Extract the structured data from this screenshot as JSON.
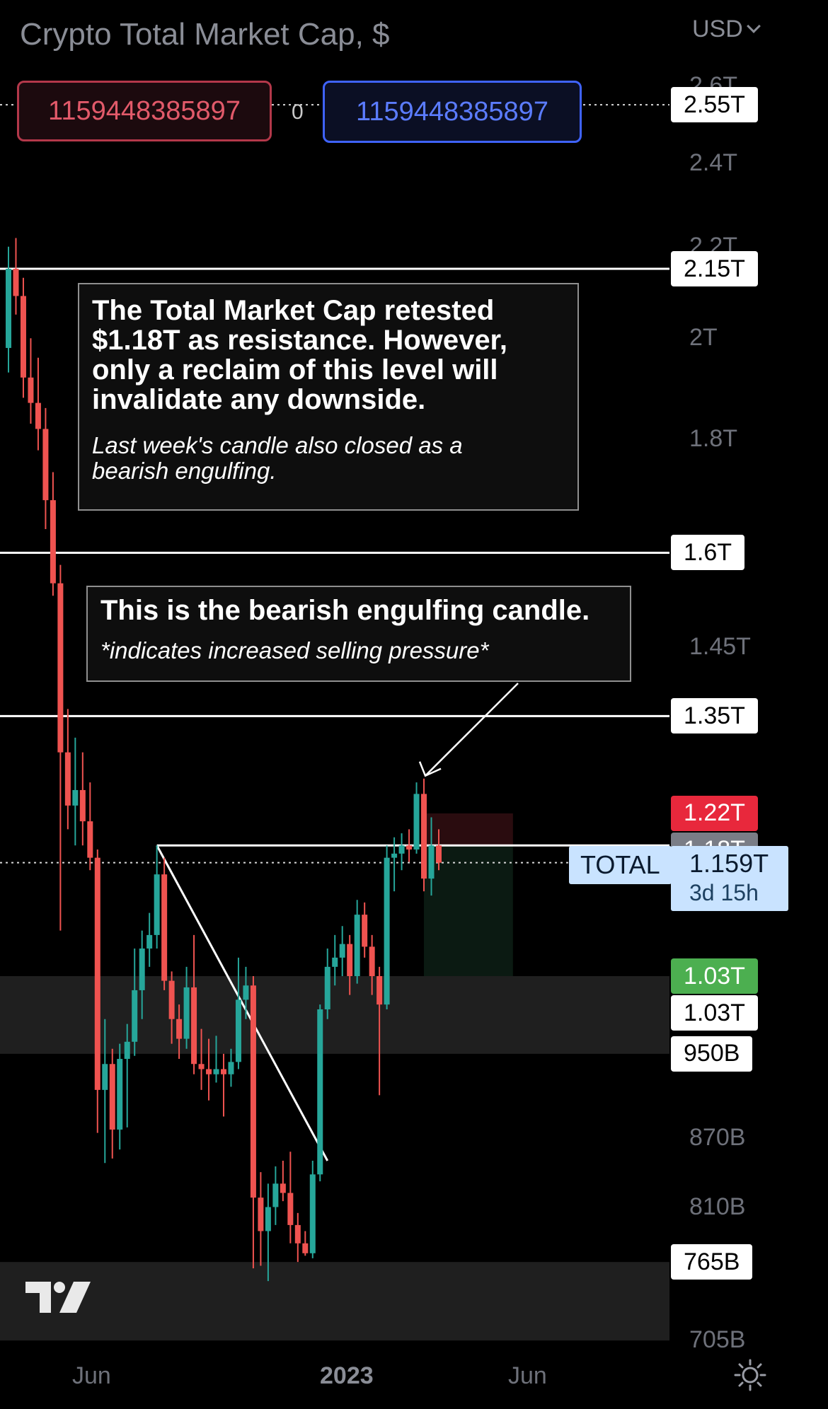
{
  "header": {
    "title": "Crypto Total Market Cap, $",
    "currency": "USD"
  },
  "trade": {
    "sell_price": "1159448385897",
    "spread": "0",
    "buy_price": "1159448385897"
  },
  "axis": {
    "y_ticks": [
      {
        "label": "2.6T",
        "value": 2600
      },
      {
        "label": "2.4T",
        "value": 2400
      },
      {
        "label": "2.2T",
        "value": 2200
      },
      {
        "label": "2T",
        "value": 2000
      },
      {
        "label": "1.8T",
        "value": 1800
      },
      {
        "label": "1.45T",
        "value": 1450
      },
      {
        "label": "870B",
        "value": 870
      },
      {
        "label": "810B",
        "value": 810
      },
      {
        "label": "705B",
        "value": 705
      }
    ],
    "x_ticks": [
      {
        "label": "Jun",
        "bold": false
      },
      {
        "label": "2023",
        "bold": true
      },
      {
        "label": "Jun",
        "bold": false
      }
    ]
  },
  "price_labels": [
    {
      "label": "2.55T",
      "value": 2550,
      "bg": "#ffffff",
      "fg": "#000000"
    },
    {
      "label": "2.15T",
      "value": 2150,
      "bg": "#ffffff",
      "fg": "#000000"
    },
    {
      "label": "1.6T",
      "value": 1600,
      "bg": "#ffffff",
      "fg": "#000000"
    },
    {
      "label": "1.35T",
      "value": 1350,
      "bg": "#ffffff",
      "fg": "#000000"
    },
    {
      "label": "1.22T",
      "value": 1220,
      "bg": "#e8283c",
      "fg": "#ffffff"
    },
    {
      "label": "1.18T",
      "value": 1180,
      "bg": "#7a7d86",
      "fg": "#ffffff"
    },
    {
      "label": "1.18T",
      "value": 1180,
      "bg": "#ffffff",
      "fg": "#000000"
    },
    {
      "label": "1.03T",
      "value": 1030,
      "bg": "#4caf50",
      "fg": "#ffffff"
    },
    {
      "label": "1.03T",
      "value": 1030,
      "bg": "#ffffff",
      "fg": "#000000"
    },
    {
      "label": "950B",
      "value": 950,
      "bg": "#ffffff",
      "fg": "#000000"
    },
    {
      "label": "765B",
      "value": 765,
      "bg": "#ffffff",
      "fg": "#000000"
    }
  ],
  "current": {
    "symbol": "TOTAL",
    "price": "1.159T",
    "countdown": "3d 15h"
  },
  "annotations": {
    "note1_bold": "The Total Market Cap retested $1.18T as resistance. However, only a reclaim of this level will invalidate any downside.",
    "note1_italic": "Last week's candle also closed as a bearish engulfing.",
    "note2_bold": "This is the bearish engulfing candle.",
    "note2_italic": "*indicates increased selling pressure*"
  },
  "colors": {
    "up": "#26a69a",
    "down": "#ef5350",
    "background": "#000000",
    "axis_text": "#6e717a"
  },
  "icons": {
    "logo": "tradingview-logo",
    "settings": "gear-icon"
  },
  "chart_data": {
    "type": "candlestick",
    "title": "Crypto Total Market Cap, $",
    "units": "USD (billions)",
    "ylim": [
      690,
      2620
    ],
    "y_scale": "log",
    "x_range": [
      "2022-03-21",
      "2023-05-15"
    ],
    "candles": [
      {
        "t": "2022-03-21",
        "o": 1980,
        "h": 2200,
        "l": 1930,
        "c": 2150
      },
      {
        "t": "2022-03-28",
        "o": 2150,
        "h": 2220,
        "l": 2050,
        "c": 2090
      },
      {
        "t": "2022-04-04",
        "o": 2090,
        "h": 2130,
        "l": 1880,
        "c": 1920
      },
      {
        "t": "2022-04-11",
        "o": 1920,
        "h": 2000,
        "l": 1830,
        "c": 1870
      },
      {
        "t": "2022-04-18",
        "o": 1870,
        "h": 1960,
        "l": 1780,
        "c": 1820
      },
      {
        "t": "2022-04-25",
        "o": 1820,
        "h": 1860,
        "l": 1640,
        "c": 1690
      },
      {
        "t": "2022-05-02",
        "o": 1690,
        "h": 1740,
        "l": 1530,
        "c": 1550
      },
      {
        "t": "2022-05-09",
        "o": 1550,
        "h": 1580,
        "l": 1080,
        "c": 1300
      },
      {
        "t": "2022-05-16",
        "o": 1300,
        "h": 1360,
        "l": 1200,
        "c": 1230
      },
      {
        "t": "2022-05-23",
        "o": 1230,
        "h": 1320,
        "l": 1180,
        "c": 1250
      },
      {
        "t": "2022-05-30",
        "o": 1250,
        "h": 1300,
        "l": 1180,
        "c": 1210
      },
      {
        "t": "2022-06-06",
        "o": 1210,
        "h": 1260,
        "l": 1150,
        "c": 1165
      },
      {
        "t": "2022-06-13",
        "o": 1165,
        "h": 1175,
        "l": 875,
        "c": 915
      },
      {
        "t": "2022-06-20",
        "o": 915,
        "h": 985,
        "l": 848,
        "c": 940
      },
      {
        "t": "2022-06-27",
        "o": 940,
        "h": 955,
        "l": 852,
        "c": 878
      },
      {
        "t": "2022-07-04",
        "o": 878,
        "h": 960,
        "l": 860,
        "c": 945
      },
      {
        "t": "2022-07-11",
        "o": 945,
        "h": 980,
        "l": 880,
        "c": 962
      },
      {
        "t": "2022-07-18",
        "o": 962,
        "h": 1060,
        "l": 948,
        "c": 1015
      },
      {
        "t": "2022-07-25",
        "o": 1015,
        "h": 1080,
        "l": 985,
        "c": 1060
      },
      {
        "t": "2022-08-01",
        "o": 1060,
        "h": 1100,
        "l": 1040,
        "c": 1075
      },
      {
        "t": "2022-08-08",
        "o": 1075,
        "h": 1180,
        "l": 1060,
        "c": 1145
      },
      {
        "t": "2022-08-15",
        "o": 1145,
        "h": 1165,
        "l": 1015,
        "c": 1025
      },
      {
        "t": "2022-08-22",
        "o": 1025,
        "h": 1035,
        "l": 960,
        "c": 985
      },
      {
        "t": "2022-08-29",
        "o": 985,
        "h": 1000,
        "l": 945,
        "c": 965
      },
      {
        "t": "2022-09-05",
        "o": 965,
        "h": 1040,
        "l": 955,
        "c": 1018
      },
      {
        "t": "2022-09-12",
        "o": 1018,
        "h": 1075,
        "l": 930,
        "c": 940
      },
      {
        "t": "2022-09-19",
        "o": 940,
        "h": 975,
        "l": 915,
        "c": 935
      },
      {
        "t": "2022-09-26",
        "o": 935,
        "h": 965,
        "l": 905,
        "c": 930
      },
      {
        "t": "2022-10-03",
        "o": 930,
        "h": 968,
        "l": 922,
        "c": 935
      },
      {
        "t": "2022-10-10",
        "o": 935,
        "h": 950,
        "l": 890,
        "c": 930
      },
      {
        "t": "2022-10-17",
        "o": 930,
        "h": 955,
        "l": 918,
        "c": 942
      },
      {
        "t": "2022-10-24",
        "o": 942,
        "h": 1050,
        "l": 935,
        "c": 1005
      },
      {
        "t": "2022-10-31",
        "o": 1005,
        "h": 1040,
        "l": 985,
        "c": 1020
      },
      {
        "t": "2022-11-07",
        "o": 1020,
        "h": 1030,
        "l": 760,
        "c": 818
      },
      {
        "t": "2022-11-14",
        "o": 818,
        "h": 840,
        "l": 762,
        "c": 790
      },
      {
        "t": "2022-11-21",
        "o": 790,
        "h": 830,
        "l": 750,
        "c": 810
      },
      {
        "t": "2022-11-28",
        "o": 810,
        "h": 845,
        "l": 795,
        "c": 830
      },
      {
        "t": "2022-12-05",
        "o": 830,
        "h": 850,
        "l": 815,
        "c": 822
      },
      {
        "t": "2022-12-12",
        "o": 822,
        "h": 858,
        "l": 780,
        "c": 795
      },
      {
        "t": "2022-12-19",
        "o": 795,
        "h": 805,
        "l": 765,
        "c": 780
      },
      {
        "t": "2022-12-26",
        "o": 780,
        "h": 790,
        "l": 770,
        "c": 772
      },
      {
        "t": "2023-01-02",
        "o": 772,
        "h": 850,
        "l": 768,
        "c": 838
      },
      {
        "t": "2023-01-09",
        "o": 838,
        "h": 1000,
        "l": 832,
        "c": 995
      },
      {
        "t": "2023-01-16",
        "o": 995,
        "h": 1060,
        "l": 985,
        "c": 1040
      },
      {
        "t": "2023-01-23",
        "o": 1040,
        "h": 1075,
        "l": 1020,
        "c": 1050
      },
      {
        "t": "2023-01-30",
        "o": 1050,
        "h": 1085,
        "l": 1030,
        "c": 1065
      },
      {
        "t": "2023-02-06",
        "o": 1065,
        "h": 1075,
        "l": 1010,
        "c": 1030
      },
      {
        "t": "2023-02-13",
        "o": 1030,
        "h": 1115,
        "l": 1022,
        "c": 1098
      },
      {
        "t": "2023-02-20",
        "o": 1098,
        "h": 1112,
        "l": 1050,
        "c": 1062
      },
      {
        "t": "2023-02-27",
        "o": 1062,
        "h": 1075,
        "l": 1010,
        "c": 1030
      },
      {
        "t": "2023-03-06",
        "o": 1030,
        "h": 1040,
        "l": 910,
        "c": 1000
      },
      {
        "t": "2023-03-13",
        "o": 1000,
        "h": 1180,
        "l": 995,
        "c": 1165
      },
      {
        "t": "2023-03-20",
        "o": 1165,
        "h": 1190,
        "l": 1125,
        "c": 1170
      },
      {
        "t": "2023-03-27",
        "o": 1170,
        "h": 1195,
        "l": 1150,
        "c": 1180
      },
      {
        "t": "2023-04-03",
        "o": 1180,
        "h": 1200,
        "l": 1160,
        "c": 1175
      },
      {
        "t": "2023-04-10",
        "o": 1175,
        "h": 1260,
        "l": 1170,
        "c": 1245
      },
      {
        "t": "2023-04-17",
        "o": 1245,
        "h": 1265,
        "l": 1125,
        "c": 1140
      },
      {
        "t": "2023-04-24",
        "o": 1140,
        "h": 1215,
        "l": 1120,
        "c": 1180
      },
      {
        "t": "2023-05-01",
        "o": 1180,
        "h": 1200,
        "l": 1150,
        "c": 1159
      }
    ],
    "horizontal_levels": [
      2150,
      1600,
      1350,
      1180
    ],
    "dotted_levels": [
      2550,
      1159
    ],
    "zones": [
      {
        "from": 950,
        "to": 1030
      },
      {
        "from": 705,
        "to": 765
      }
    ],
    "trendline": {
      "from": {
        "t": "2022-08-08",
        "v": 1180
      },
      "to": {
        "t": "2023-01-16",
        "v": 850
      }
    },
    "position": {
      "from_t": "2023-04-17",
      "to_t": "2023-07-10",
      "entry": 1180,
      "stop": 1220,
      "target": 1030
    }
  }
}
